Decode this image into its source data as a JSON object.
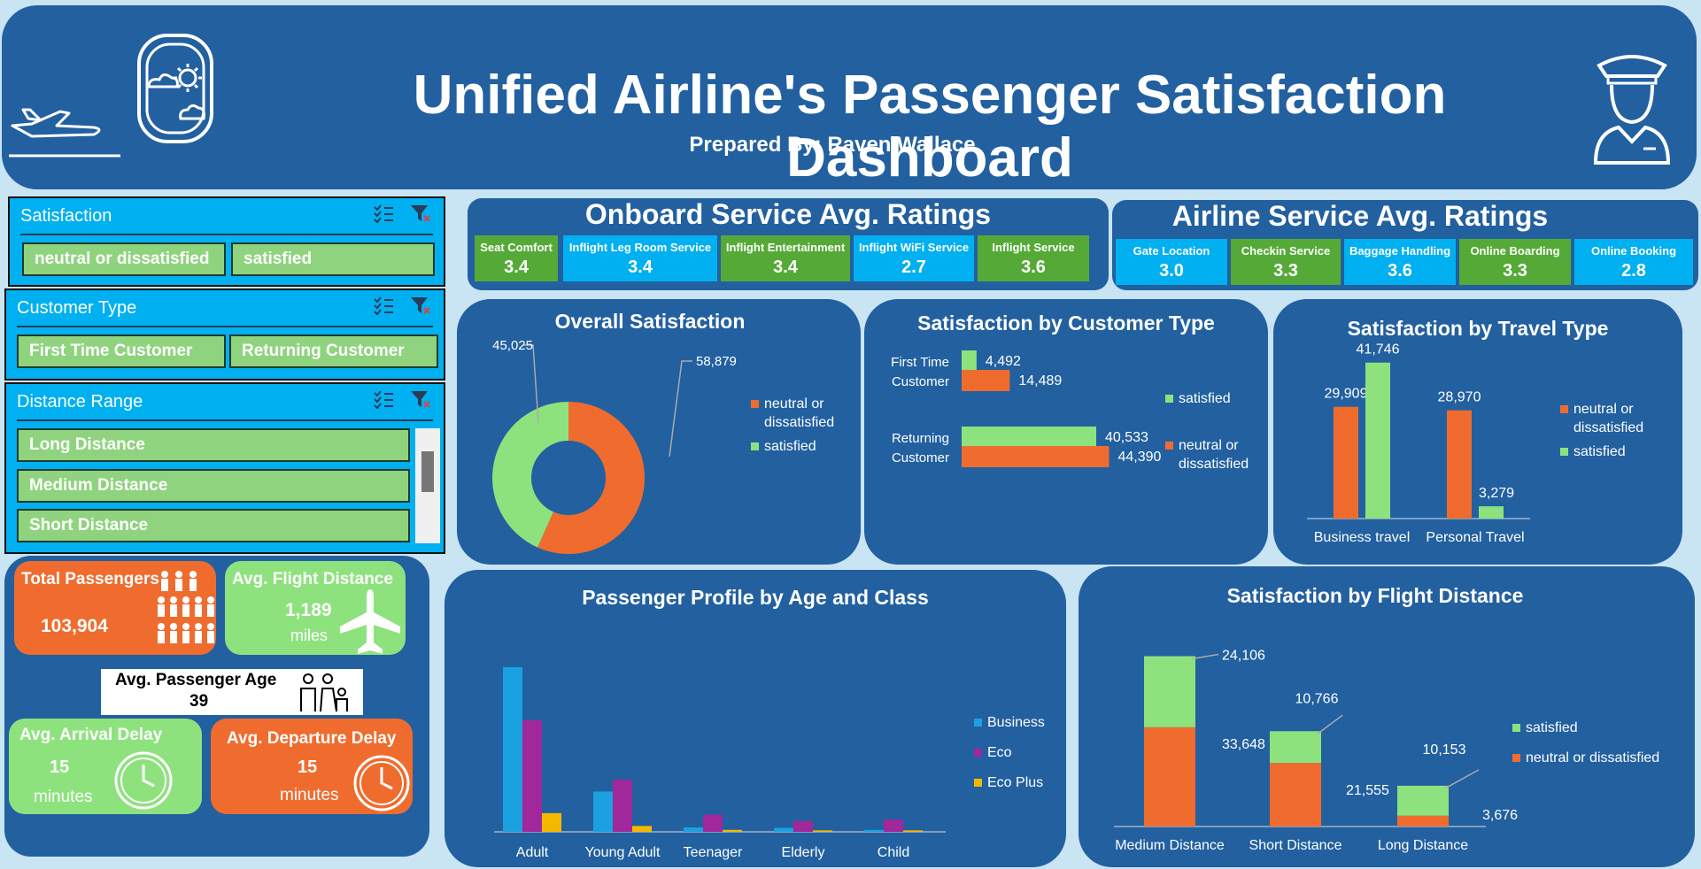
{
  "header": {
    "title": "Unified Airline's Passenger Satisfaction Dashboard",
    "subtitle": "Prepared By: Raven Wallace"
  },
  "slicers": {
    "satisfaction": {
      "title": "Satisfaction",
      "items": [
        "neutral or dissatisfied",
        "satisfied"
      ]
    },
    "customer_type": {
      "title": "Customer Type",
      "items": [
        "First Time Customer",
        "Returning Customer"
      ]
    },
    "distance_range": {
      "title": "Distance Range",
      "items": [
        "Long Distance",
        "Medium Distance",
        "Short Distance"
      ]
    }
  },
  "onboard": {
    "title": "Onboard Service Avg. Ratings",
    "items": [
      {
        "label": "Seat Comfort",
        "value": "3.4"
      },
      {
        "label": "Inflight Leg Room Service",
        "value": "3.4"
      },
      {
        "label": "Inflight Entertainment",
        "value": "3.4"
      },
      {
        "label": "Inflight WiFi Service",
        "value": "2.7"
      },
      {
        "label": "Inflight Service",
        "value": "3.6"
      }
    ]
  },
  "airline": {
    "title": "Airline Service Avg. Ratings",
    "items": [
      {
        "label": "Gate Location",
        "value": "3.0"
      },
      {
        "label": "Checkin Service",
        "value": "3.3"
      },
      {
        "label": "Baggage Handling",
        "value": "3.6"
      },
      {
        "label": "Online Boarding",
        "value": "3.3"
      },
      {
        "label": "Online Booking",
        "value": "2.8"
      }
    ]
  },
  "kpis": {
    "total_passengers": {
      "label": "Total Passengers",
      "value": "103,904"
    },
    "avg_flight_distance": {
      "label": "Avg. Flight Distance",
      "value": "1,189",
      "unit": "miles"
    },
    "avg_passenger_age": {
      "label": "Avg. Passenger Age",
      "value": "39"
    },
    "avg_arrival_delay": {
      "label": "Avg. Arrival Delay",
      "value": "15",
      "unit": "minutes"
    },
    "avg_departure_delay": {
      "label": "Avg. Departure Delay",
      "value": "15",
      "unit": "minutes"
    }
  },
  "colors": {
    "panel": "#2260a0",
    "orange": "#ef6c2e",
    "light_green": "#8ee27e",
    "cyan": "#00b0f0",
    "dark_green": "#55aa37",
    "business": "#1ba1e2",
    "eco": "#a0289a",
    "eco_plus": "#f5b800"
  },
  "chart_data": [
    {
      "id": "overall",
      "type": "pie",
      "title": "Overall Satisfaction",
      "categories": [
        "neutral or dissatisfied",
        "satisfied"
      ],
      "values": [
        58879,
        45025
      ],
      "value_labels": [
        "58,879",
        "45,025"
      ],
      "legend": [
        "neutral or",
        "dissatisfied",
        "satisfied"
      ]
    },
    {
      "id": "customer_type",
      "type": "bar",
      "title": "Satisfaction by Customer Type",
      "categories": [
        [
          "First Time",
          "Customer"
        ],
        [
          "Returning",
          "Customer"
        ]
      ],
      "series": [
        {
          "name": "satisfied",
          "values": [
            4492,
            40533
          ],
          "labels": [
            "4,492",
            "40,533"
          ]
        },
        {
          "name": "neutral or dissatisfied",
          "values": [
            14489,
            44390
          ],
          "labels": [
            "14,489",
            "44,390"
          ]
        }
      ],
      "legend": [
        "satisfied",
        "neutral or",
        "dissatisfied"
      ]
    },
    {
      "id": "travel_type",
      "type": "bar",
      "title": "Satisfaction by Travel Type",
      "categories": [
        "Business travel",
        "Personal Travel"
      ],
      "series": [
        {
          "name": "neutral or dissatisfied",
          "values": [
            29909,
            28970
          ],
          "labels": [
            "29,909",
            "28,970"
          ]
        },
        {
          "name": "satisfied",
          "values": [
            41746,
            3279
          ],
          "labels": [
            "41,746",
            "3,279"
          ]
        }
      ],
      "legend": [
        "neutral or",
        "dissatisfied",
        "satisfied"
      ]
    },
    {
      "id": "age_class",
      "type": "bar",
      "title": "Passenger Profile by Age and Class",
      "categories": [
        "Adult",
        "Young Adult",
        "Teenager",
        "Elderly",
        "Child"
      ],
      "series": [
        {
          "name": "Business",
          "values": [
            33500,
            8200,
            900,
            800,
            400
          ]
        },
        {
          "name": "Eco",
          "values": [
            22700,
            10600,
            3500,
            2200,
            2500
          ]
        },
        {
          "name": "Eco Plus",
          "values": [
            3800,
            1200,
            400,
            300,
            300
          ]
        }
      ],
      "ylim": [
        0,
        36000
      ]
    },
    {
      "id": "flight_distance",
      "type": "bar",
      "title": "Satisfaction by Flight Distance",
      "categories": [
        "Medium Distance",
        "Short Distance",
        "Long Distance"
      ],
      "series": [
        {
          "name": "neutral or dissatisfied",
          "values": [
            33648,
            21555,
            3676
          ],
          "labels": [
            "33,648",
            "21,555",
            "3,676"
          ]
        },
        {
          "name": "satisfied",
          "values": [
            24106,
            10766,
            10153
          ],
          "labels": [
            "24,106",
            "10,766",
            "10,153"
          ]
        }
      ],
      "legend": [
        "satisfied",
        "neutral or dissatisfied"
      ]
    }
  ]
}
